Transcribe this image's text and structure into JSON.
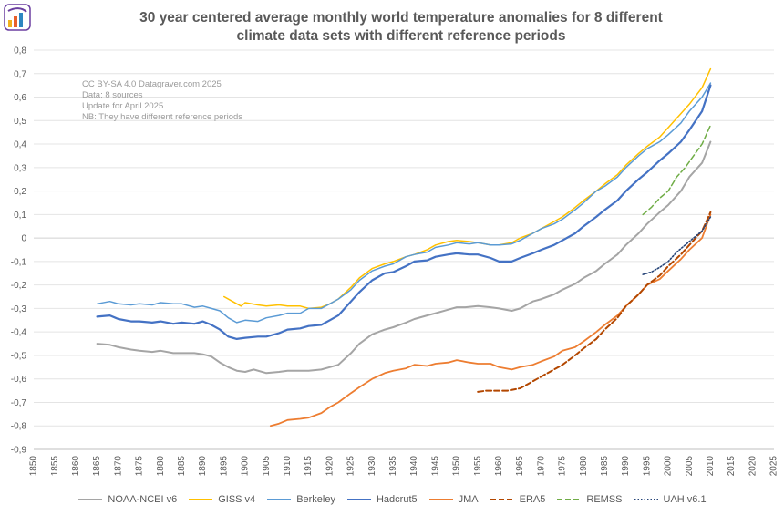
{
  "title_line1": "30 year centered average monthly world temperature anomalies for 8 different",
  "title_line2": "climate data sets with different reference periods",
  "notes": [
    "CC BY-SA 4.0 Datagraver.com 2025",
    "Data: 8 sources",
    "Update for April 2025",
    "NB: They have different reference periods"
  ],
  "chart_data": {
    "type": "line",
    "title": "30 year centered average monthly world temperature anomalies for 8 different climate data sets with different reference periods",
    "xlabel": "",
    "ylabel": "",
    "xlim": [
      1850,
      2025
    ],
    "ylim": [
      -0.9,
      0.8
    ],
    "x_ticks": [
      1850,
      1855,
      1860,
      1865,
      1870,
      1875,
      1880,
      1885,
      1890,
      1895,
      1900,
      1905,
      1910,
      1915,
      1920,
      1925,
      1930,
      1935,
      1940,
      1945,
      1950,
      1955,
      1960,
      1965,
      1970,
      1975,
      1980,
      1985,
      1990,
      1995,
      2000,
      2005,
      2010,
      2015,
      2020,
      2025
    ],
    "y_ticks": [
      0.8,
      0.7,
      0.6,
      0.5,
      0.4,
      0.3,
      0.2,
      0.1,
      0,
      -0.1,
      -0.2,
      -0.3,
      -0.4,
      -0.5,
      -0.6,
      -0.7,
      -0.8,
      -0.9
    ],
    "y_tick_labels": [
      "0,8",
      "0,7",
      "0,6",
      "0,5",
      "0,4",
      "0,3",
      "0,2",
      "0,1",
      "0",
      "-0,1",
      "-0,2",
      "-0,3",
      "-0,4",
      "-0,5",
      "-0,6",
      "-0,7",
      "-0,8",
      "-0,9"
    ],
    "series": [
      {
        "name": "NOAA-NCEI v6",
        "color": "#a5a5a5",
        "dash": "solid",
        "width": 2,
        "x": [
          1865,
          1868,
          1870,
          1873,
          1875,
          1878,
          1880,
          1883,
          1885,
          1888,
          1890,
          1892,
          1894,
          1896,
          1898,
          1900,
          1902,
          1905,
          1908,
          1910,
          1912,
          1915,
          1918,
          1920,
          1922,
          1925,
          1927,
          1930,
          1933,
          1935,
          1938,
          1940,
          1943,
          1945,
          1948,
          1950,
          1952,
          1955,
          1958,
          1960,
          1963,
          1965,
          1968,
          1970,
          1973,
          1975,
          1978,
          1980,
          1983,
          1985,
          1988,
          1990,
          1993,
          1995,
          1998,
          2000,
          2003,
          2005,
          2008,
          2010
        ],
        "y": [
          -0.45,
          -0.455,
          -0.465,
          -0.475,
          -0.48,
          -0.485,
          -0.48,
          -0.49,
          -0.49,
          -0.49,
          -0.495,
          -0.505,
          -0.53,
          -0.55,
          -0.565,
          -0.57,
          -0.56,
          -0.575,
          -0.57,
          -0.565,
          -0.565,
          -0.565,
          -0.56,
          -0.55,
          -0.54,
          -0.49,
          -0.45,
          -0.41,
          -0.39,
          -0.38,
          -0.36,
          -0.345,
          -0.33,
          -0.32,
          -0.305,
          -0.295,
          -0.295,
          -0.29,
          -0.295,
          -0.3,
          -0.31,
          -0.3,
          -0.27,
          -0.26,
          -0.24,
          -0.22,
          -0.195,
          -0.17,
          -0.14,
          -0.11,
          -0.07,
          -0.03,
          0.02,
          0.06,
          0.11,
          0.14,
          0.2,
          0.26,
          0.32,
          0.41
        ]
      },
      {
        "name": "GISS v4",
        "color": "#ffc000",
        "dash": "solid",
        "width": 1.5,
        "x": [
          1895,
          1897,
          1899,
          1900,
          1903,
          1905,
          1908,
          1910,
          1913,
          1915,
          1918,
          1920,
          1922,
          1925,
          1927,
          1930,
          1933,
          1935,
          1938,
          1940,
          1943,
          1945,
          1948,
          1950,
          1953,
          1955,
          1958,
          1960,
          1963,
          1965,
          1968,
          1970,
          1973,
          1975,
          1978,
          1980,
          1983,
          1985,
          1988,
          1990,
          1993,
          1995,
          1998,
          2000,
          2003,
          2005,
          2008,
          2010
        ],
        "y": [
          -0.25,
          -0.27,
          -0.29,
          -0.275,
          -0.285,
          -0.29,
          -0.285,
          -0.29,
          -0.29,
          -0.3,
          -0.295,
          -0.28,
          -0.26,
          -0.21,
          -0.17,
          -0.13,
          -0.11,
          -0.1,
          -0.08,
          -0.07,
          -0.05,
          -0.03,
          -0.015,
          -0.01,
          -0.015,
          -0.02,
          -0.03,
          -0.03,
          -0.02,
          0.0,
          0.02,
          0.04,
          0.07,
          0.09,
          0.13,
          0.16,
          0.2,
          0.23,
          0.27,
          0.31,
          0.36,
          0.39,
          0.43,
          0.47,
          0.53,
          0.57,
          0.64,
          0.72
        ]
      },
      {
        "name": "Berkeley",
        "color": "#5b9bd5",
        "dash": "solid",
        "width": 1.5,
        "x": [
          1865,
          1868,
          1870,
          1873,
          1875,
          1878,
          1880,
          1883,
          1885,
          1888,
          1890,
          1892,
          1894,
          1896,
          1898,
          1900,
          1903,
          1905,
          1908,
          1910,
          1913,
          1915,
          1918,
          1920,
          1922,
          1925,
          1927,
          1930,
          1933,
          1935,
          1938,
          1940,
          1943,
          1945,
          1948,
          1950,
          1953,
          1955,
          1958,
          1960,
          1963,
          1965,
          1968,
          1970,
          1973,
          1975,
          1978,
          1980,
          1983,
          1985,
          1988,
          1990,
          1993,
          1995,
          1998,
          2000,
          2003,
          2005,
          2008,
          2010
        ],
        "y": [
          -0.28,
          -0.27,
          -0.28,
          -0.285,
          -0.28,
          -0.285,
          -0.275,
          -0.28,
          -0.28,
          -0.295,
          -0.29,
          -0.3,
          -0.31,
          -0.34,
          -0.36,
          -0.35,
          -0.355,
          -0.34,
          -0.33,
          -0.32,
          -0.32,
          -0.3,
          -0.3,
          -0.28,
          -0.26,
          -0.22,
          -0.18,
          -0.14,
          -0.12,
          -0.11,
          -0.08,
          -0.07,
          -0.06,
          -0.04,
          -0.03,
          -0.02,
          -0.025,
          -0.02,
          -0.03,
          -0.03,
          -0.025,
          -0.01,
          0.02,
          0.04,
          0.06,
          0.08,
          0.12,
          0.15,
          0.2,
          0.22,
          0.26,
          0.3,
          0.35,
          0.38,
          0.41,
          0.44,
          0.49,
          0.54,
          0.6,
          0.66
        ]
      },
      {
        "name": "Hadcrut5",
        "color": "#4472c4",
        "dash": "solid",
        "width": 2.2,
        "x": [
          1865,
          1868,
          1870,
          1873,
          1875,
          1878,
          1880,
          1883,
          1885,
          1888,
          1890,
          1892,
          1894,
          1896,
          1898,
          1900,
          1903,
          1905,
          1908,
          1910,
          1913,
          1915,
          1918,
          1920,
          1922,
          1925,
          1927,
          1930,
          1933,
          1935,
          1938,
          1940,
          1943,
          1945,
          1948,
          1950,
          1953,
          1955,
          1958,
          1960,
          1963,
          1965,
          1968,
          1970,
          1973,
          1975,
          1978,
          1980,
          1983,
          1985,
          1988,
          1990,
          1993,
          1995,
          1998,
          2000,
          2003,
          2005,
          2008,
          2010
        ],
        "y": [
          -0.335,
          -0.33,
          -0.345,
          -0.355,
          -0.355,
          -0.36,
          -0.355,
          -0.365,
          -0.36,
          -0.365,
          -0.355,
          -0.37,
          -0.39,
          -0.42,
          -0.43,
          -0.425,
          -0.42,
          -0.42,
          -0.405,
          -0.39,
          -0.385,
          -0.375,
          -0.37,
          -0.35,
          -0.33,
          -0.27,
          -0.23,
          -0.18,
          -0.15,
          -0.145,
          -0.12,
          -0.1,
          -0.095,
          -0.08,
          -0.07,
          -0.065,
          -0.07,
          -0.07,
          -0.085,
          -0.1,
          -0.1,
          -0.085,
          -0.065,
          -0.05,
          -0.03,
          -0.01,
          0.02,
          0.05,
          0.09,
          0.12,
          0.16,
          0.2,
          0.25,
          0.28,
          0.33,
          0.36,
          0.41,
          0.46,
          0.54,
          0.65
        ]
      },
      {
        "name": "JMA",
        "color": "#ed7d31",
        "dash": "solid",
        "width": 1.8,
        "x": [
          1906,
          1908,
          1910,
          1913,
          1915,
          1918,
          1920,
          1922,
          1925,
          1927,
          1930,
          1933,
          1935,
          1938,
          1940,
          1943,
          1945,
          1948,
          1950,
          1953,
          1955,
          1958,
          1960,
          1963,
          1965,
          1968,
          1970,
          1973,
          1975,
          1978,
          1980,
          1983,
          1985,
          1988,
          1990,
          1993,
          1995,
          1998,
          2000,
          2003,
          2005,
          2008,
          2010
        ],
        "y": [
          -0.8,
          -0.79,
          -0.775,
          -0.77,
          -0.765,
          -0.745,
          -0.72,
          -0.7,
          -0.66,
          -0.635,
          -0.6,
          -0.575,
          -0.565,
          -0.555,
          -0.54,
          -0.545,
          -0.535,
          -0.53,
          -0.52,
          -0.53,
          -0.535,
          -0.535,
          -0.55,
          -0.56,
          -0.55,
          -0.54,
          -0.525,
          -0.505,
          -0.48,
          -0.465,
          -0.44,
          -0.4,
          -0.37,
          -0.33,
          -0.29,
          -0.24,
          -0.2,
          -0.175,
          -0.14,
          -0.09,
          -0.05,
          0.0,
          0.1
        ]
      },
      {
        "name": "ERA5",
        "color": "#b34700",
        "dash": "dashed",
        "width": 2,
        "x": [
          1955,
          1957,
          1960,
          1962,
          1965,
          1968,
          1970,
          1973,
          1975,
          1978,
          1980,
          1983,
          1985,
          1988,
          1990,
          1993,
          1995,
          1998,
          2000,
          2003,
          2005,
          2008,
          2010
        ],
        "y": [
          -0.655,
          -0.65,
          -0.65,
          -0.65,
          -0.64,
          -0.61,
          -0.59,
          -0.56,
          -0.54,
          -0.5,
          -0.47,
          -0.43,
          -0.39,
          -0.34,
          -0.29,
          -0.24,
          -0.2,
          -0.16,
          -0.12,
          -0.07,
          -0.03,
          0.03,
          0.11
        ]
      },
      {
        "name": "REMSS",
        "color": "#70ad47",
        "dash": "dashed",
        "width": 1.5,
        "x": [
          1994,
          1996,
          1998,
          2000,
          2002,
          2004,
          2006,
          2008,
          2010
        ],
        "y": [
          0.1,
          0.13,
          0.17,
          0.2,
          0.26,
          0.3,
          0.35,
          0.4,
          0.48
        ]
      },
      {
        "name": "UAH v6.1",
        "color": "#264478",
        "dash": "dotted",
        "width": 1.6,
        "x": [
          1994,
          1996,
          1998,
          2000,
          2002,
          2004,
          2006,
          2008,
          2010
        ],
        "y": [
          -0.155,
          -0.145,
          -0.125,
          -0.1,
          -0.06,
          -0.03,
          0.0,
          0.03,
          0.09
        ]
      }
    ]
  }
}
